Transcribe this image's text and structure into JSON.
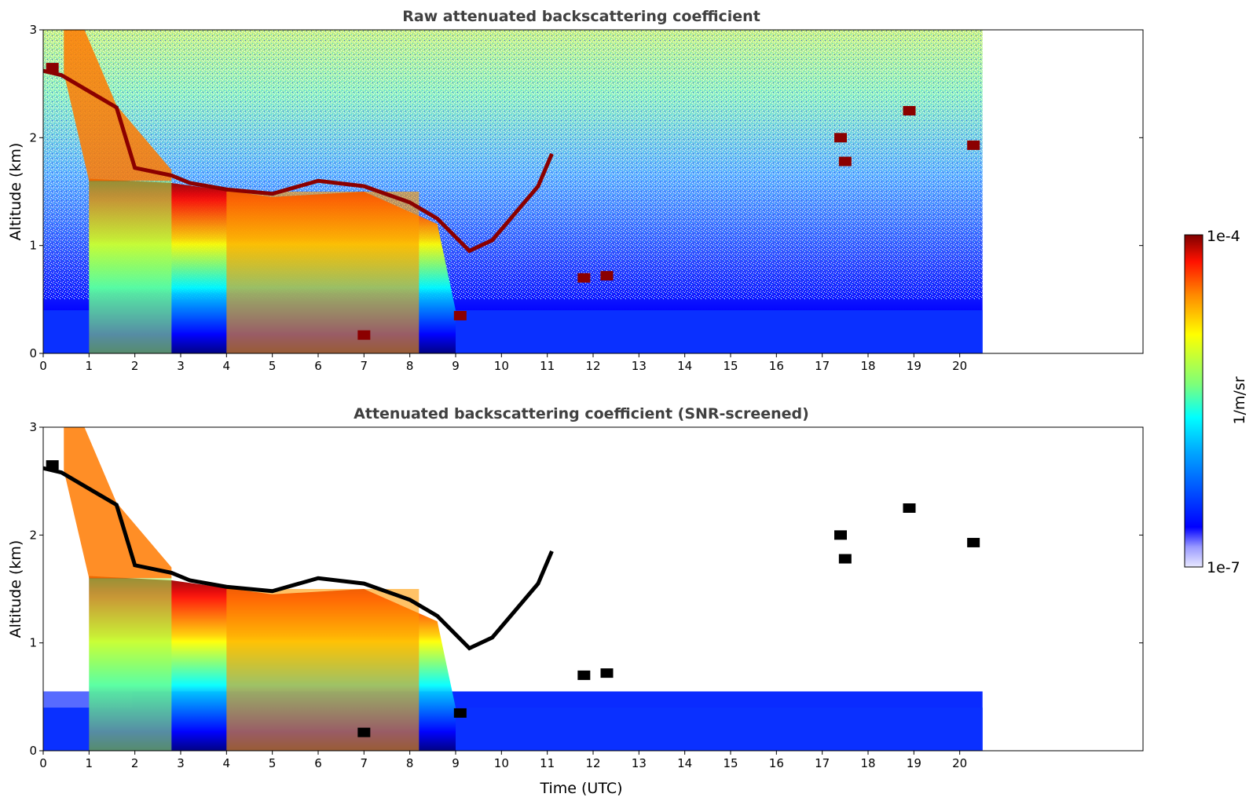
{
  "chart_data": [
    {
      "type": "heatmap",
      "title": "Raw attenuated backscattering coefficient",
      "xlabel": "",
      "ylabel": "Altitude (km)",
      "xlim": [
        0,
        24
      ],
      "ylim": [
        0,
        3
      ],
      "x_ticks": [
        "0",
        "1",
        "2",
        "3",
        "4",
        "5",
        "6",
        "7",
        "8",
        "9",
        "10",
        "11",
        "12",
        "13",
        "14",
        "15",
        "16",
        "17",
        "18",
        "19",
        "20"
      ],
      "y_ticks": [
        "0",
        "1",
        "2",
        "3"
      ],
      "data_end_time": 20.5,
      "screened": false
    },
    {
      "type": "heatmap",
      "title": "Attenuated backscattering coefficient (SNR-screened)",
      "xlabel": "Time (UTC)",
      "ylabel": "Altitude (km)",
      "xlim": [
        0,
        24
      ],
      "ylim": [
        0,
        3
      ],
      "x_ticks": [
        "0",
        "1",
        "2",
        "3",
        "4",
        "5",
        "6",
        "7",
        "8",
        "9",
        "10",
        "11",
        "12",
        "13",
        "14",
        "15",
        "16",
        "17",
        "18",
        "19",
        "20"
      ],
      "y_ticks": [
        "0",
        "1",
        "2",
        "3"
      ],
      "data_end_time": 20.5,
      "screened": true
    }
  ],
  "colorbar": {
    "label": "1/m/sr",
    "min_label": "1e-7",
    "max_label": "1e-4",
    "scale": "log",
    "colormap": "jet"
  },
  "colors": {
    "title": "#404040",
    "cloud": "#8b0000",
    "screened_cloud": "#000000"
  }
}
